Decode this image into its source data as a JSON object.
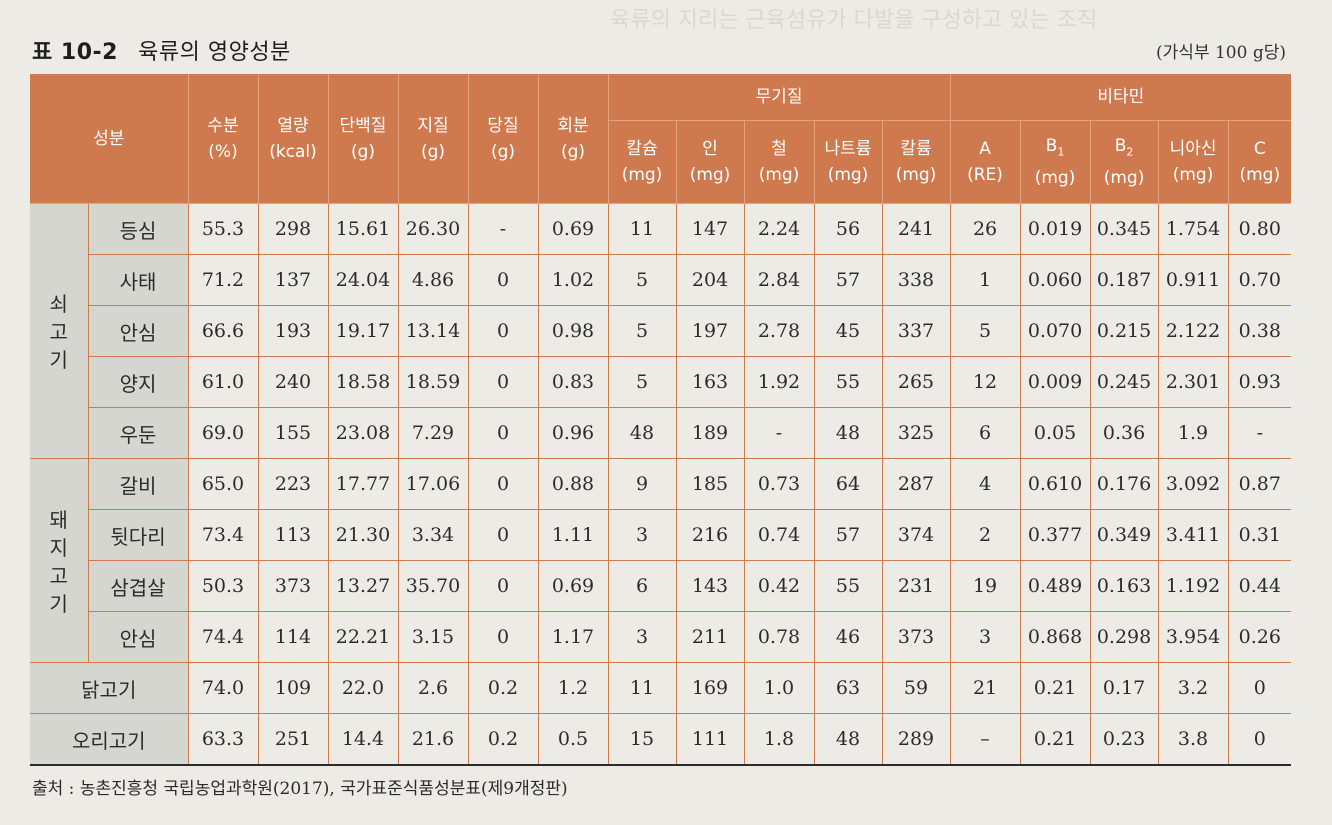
{
  "title": {
    "label": "표 10-2",
    "name": "육류의 영양성분"
  },
  "unit_note": "(가식부 100 g당)",
  "header": {
    "component": "성분",
    "cols": [
      {
        "name": "수분",
        "unit": "(%)"
      },
      {
        "name": "열량",
        "unit": "(kcal)"
      },
      {
        "name": "단백질",
        "unit": "(g)"
      },
      {
        "name": "지질",
        "unit": "(g)"
      },
      {
        "name": "당질",
        "unit": "(g)"
      },
      {
        "name": "회분",
        "unit": "(g)"
      }
    ],
    "minerals_group": "무기질",
    "minerals": [
      {
        "name": "칼슘",
        "unit": "(mg)"
      },
      {
        "name": "인",
        "unit": "(mg)"
      },
      {
        "name": "철",
        "unit": "(mg)"
      },
      {
        "name": "나트륨",
        "unit": "(mg)"
      },
      {
        "name": "칼륨",
        "unit": "(mg)"
      }
    ],
    "vitamins_group": "비타민",
    "vitamins": [
      {
        "name": "A",
        "sub": "",
        "unit": "(RE)"
      },
      {
        "name": "B",
        "sub": "1",
        "unit": "(mg)"
      },
      {
        "name": "B",
        "sub": "2",
        "unit": "(mg)"
      },
      {
        "name": "니아신",
        "sub": "",
        "unit": "(mg)"
      },
      {
        "name": "C",
        "sub": "",
        "unit": "(mg)"
      }
    ]
  },
  "groups": [
    {
      "name": "쇠\n고\n기",
      "rows": [
        {
          "part": "등심",
          "values": [
            "55.3",
            "298",
            "15.61",
            "26.30",
            "-",
            "0.69",
            "11",
            "147",
            "2.24",
            "56",
            "241",
            "26",
            "0.019",
            "0.345",
            "1.754",
            "0.80"
          ]
        },
        {
          "part": "사태",
          "values": [
            "71.2",
            "137",
            "24.04",
            "4.86",
            "0",
            "1.02",
            "5",
            "204",
            "2.84",
            "57",
            "338",
            "1",
            "0.060",
            "0.187",
            "0.911",
            "0.70"
          ]
        },
        {
          "part": "안심",
          "values": [
            "66.6",
            "193",
            "19.17",
            "13.14",
            "0",
            "0.98",
            "5",
            "197",
            "2.78",
            "45",
            "337",
            "5",
            "0.070",
            "0.215",
            "2.122",
            "0.38"
          ]
        },
        {
          "part": "양지",
          "values": [
            "61.0",
            "240",
            "18.58",
            "18.59",
            "0",
            "0.83",
            "5",
            "163",
            "1.92",
            "55",
            "265",
            "12",
            "0.009",
            "0.245",
            "2.301",
            "0.93"
          ]
        },
        {
          "part": "우둔",
          "values": [
            "69.0",
            "155",
            "23.08",
            "7.29",
            "0",
            "0.96",
            "48",
            "189",
            "-",
            "48",
            "325",
            "6",
            "0.05",
            "0.36",
            "1.9",
            "-"
          ]
        }
      ]
    },
    {
      "name": "돼\n지\n고\n기",
      "rows": [
        {
          "part": "갈비",
          "values": [
            "65.0",
            "223",
            "17.77",
            "17.06",
            "0",
            "0.88",
            "9",
            "185",
            "0.73",
            "64",
            "287",
            "4",
            "0.610",
            "0.176",
            "3.092",
            "0.87"
          ]
        },
        {
          "part": "뒷다리",
          "values": [
            "73.4",
            "113",
            "21.30",
            "3.34",
            "0",
            "1.11",
            "3",
            "216",
            "0.74",
            "57",
            "374",
            "2",
            "0.377",
            "0.349",
            "3.411",
            "0.31"
          ]
        },
        {
          "part": "삼겹살",
          "values": [
            "50.3",
            "373",
            "13.27",
            "35.70",
            "0",
            "0.69",
            "6",
            "143",
            "0.42",
            "55",
            "231",
            "19",
            "0.489",
            "0.163",
            "1.192",
            "0.44"
          ]
        },
        {
          "part": "안심",
          "values": [
            "74.4",
            "114",
            "22.21",
            "3.15",
            "0",
            "1.17",
            "3",
            "211",
            "0.78",
            "46",
            "373",
            "3",
            "0.868",
            "0.298",
            "3.954",
            "0.26"
          ]
        }
      ]
    }
  ],
  "single_rows": [
    {
      "name": "닭고기",
      "values": [
        "74.0",
        "109",
        "22.0",
        "2.6",
        "0.2",
        "1.2",
        "11",
        "169",
        "1.0",
        "63",
        "59",
        "21",
        "0.21",
        "0.17",
        "3.2",
        "0"
      ]
    },
    {
      "name": "오리고기",
      "values": [
        "63.3",
        "251",
        "14.4",
        "21.6",
        "0.2",
        "0.5",
        "15",
        "111",
        "1.8",
        "48",
        "289",
        "–",
        "0.21",
        "0.23",
        "3.8",
        "0"
      ]
    }
  ],
  "source": "출처 : 농촌진흥청 국립농업과학원(2017), 국가표준식품성분표(제9개정판)"
}
